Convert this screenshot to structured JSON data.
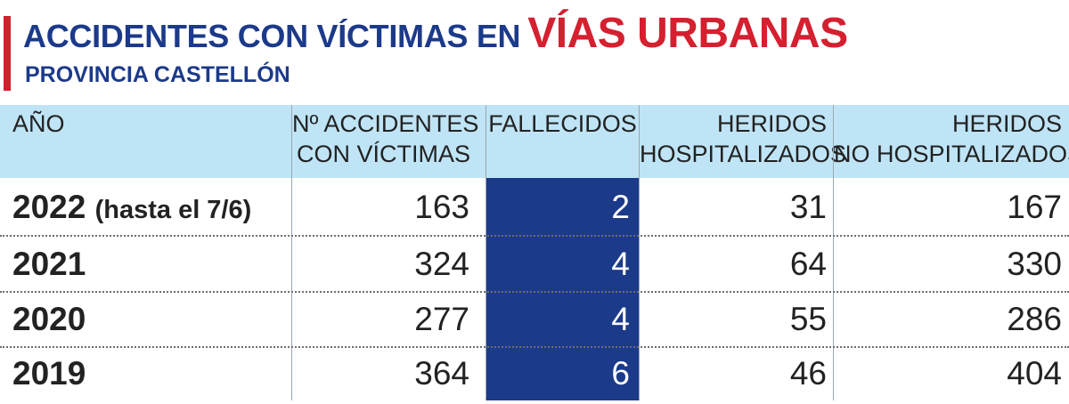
{
  "header": {
    "title_main": "ACCIDENTES CON VÍCTIMAS EN",
    "title_accent": "VÍAS URBANAS",
    "subtitle": "PROVINCIA CASTELLÓN"
  },
  "colors": {
    "title_blue": "#1c3a8a",
    "accent_red": "#d4202f",
    "header_bg": "#bfe4f6",
    "highlight_col": "#1c3a8a"
  },
  "chart_data": {
    "type": "table",
    "columns": [
      {
        "line1": "AÑO",
        "line2": ""
      },
      {
        "line1": "Nº ACCIDENTES",
        "line2": "CON VÍCTIMAS"
      },
      {
        "line1": "FALLECIDOS",
        "line2": ""
      },
      {
        "line1": "HERIDOS",
        "line2": "HOSPITALIZADOS"
      },
      {
        "line1": "HERIDOS",
        "line2": "NO HOSPITALIZADOS"
      }
    ],
    "rows": [
      {
        "year": "2022",
        "note": "(hasta el 7/6)",
        "accidentes": "163",
        "fallecidos": "2",
        "hospitalizados": "31",
        "no_hospitalizados": "167"
      },
      {
        "year": "2021",
        "note": "",
        "accidentes": "324",
        "fallecidos": "4",
        "hospitalizados": "64",
        "no_hospitalizados": "330"
      },
      {
        "year": "2020",
        "note": "",
        "accidentes": "277",
        "fallecidos": "4",
        "hospitalizados": "55",
        "no_hospitalizados": "286"
      },
      {
        "year": "2019",
        "note": "",
        "accidentes": "364",
        "fallecidos": "6",
        "hospitalizados": "46",
        "no_hospitalizados": "404"
      }
    ]
  }
}
